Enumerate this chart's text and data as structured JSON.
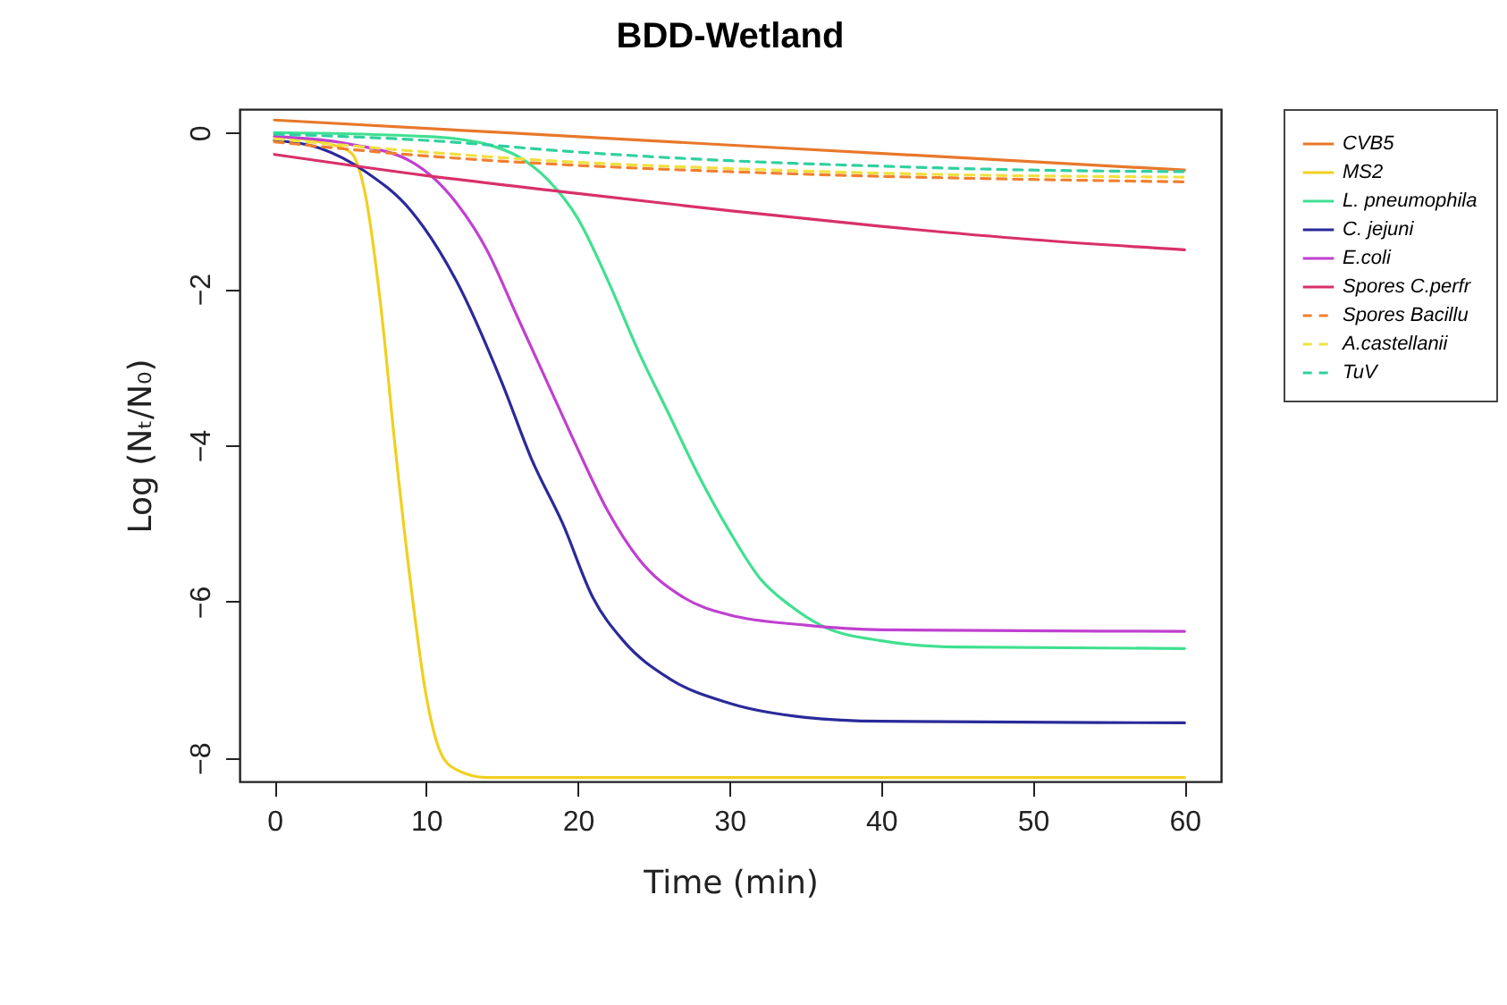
{
  "chart_data": {
    "type": "line",
    "title": "BDD-Wetland",
    "xlabel": "Time (min)",
    "ylabel": "Log (Nₜ/N₀)",
    "xlim": [
      -2.3,
      62.4
    ],
    "ylim": [
      -8.3,
      0.3
    ],
    "xticks": [
      0,
      10,
      20,
      30,
      40,
      50,
      60
    ],
    "yticks": [
      0,
      -2,
      -4,
      -6,
      -8
    ],
    "grid": false,
    "legend": "top right",
    "marker": "none",
    "series": [
      {
        "name": "CVB5",
        "color": "#e8782a",
        "line_style": "solid",
        "x": [
          0,
          30,
          60
        ],
        "values": [
          0.16,
          -0.16,
          -0.48
        ]
      },
      {
        "name": "MS2",
        "color": "#f0d020",
        "line_style": "solid",
        "x": [
          0,
          3,
          5,
          6,
          7,
          8,
          9,
          10,
          11,
          12,
          14,
          60
        ],
        "values": [
          -0.05,
          -0.12,
          -0.25,
          -0.8,
          -2.2,
          -4.1,
          -5.8,
          -7.2,
          -7.95,
          -8.15,
          -8.25,
          -8.25
        ]
      },
      {
        "name": "L. pneumophila",
        "color": "#40e090",
        "line_style": "solid",
        "x": [
          0,
          10,
          12,
          14,
          16,
          18,
          20,
          22,
          24,
          26,
          28,
          30,
          32,
          34,
          36,
          40,
          45,
          60
        ],
        "values": [
          0,
          -0.05,
          -0.08,
          -0.15,
          -0.3,
          -0.6,
          -1.1,
          -1.9,
          -2.8,
          -3.6,
          -4.4,
          -5.1,
          -5.7,
          -6.05,
          -6.3,
          -6.5,
          -6.58,
          -6.6
        ]
      },
      {
        "name": "C. jejuni",
        "color": "#2a2a9a",
        "line_style": "solid",
        "x": [
          0,
          3,
          6,
          9,
          12,
          15,
          17,
          19,
          21,
          23,
          26,
          30,
          35,
          40,
          60
        ],
        "values": [
          -0.1,
          -0.2,
          -0.5,
          -1.0,
          -1.9,
          -3.2,
          -4.2,
          -5.0,
          -5.95,
          -6.5,
          -6.98,
          -7.3,
          -7.48,
          -7.53,
          -7.55
        ]
      },
      {
        "name": "E.coli",
        "color": "#c040d0",
        "line_style": "solid",
        "x": [
          0,
          5,
          9,
          12,
          14,
          16,
          18,
          20,
          22,
          24,
          27,
          30,
          35,
          40,
          60
        ],
        "values": [
          -0.05,
          -0.15,
          -0.37,
          -0.9,
          -1.5,
          -2.35,
          -3.2,
          -4.05,
          -4.85,
          -5.45,
          -5.95,
          -6.17,
          -6.3,
          -6.36,
          -6.38
        ]
      },
      {
        "name": "Spores C.perfr",
        "color": "#d8306a",
        "line_style": "solid",
        "x": [
          0,
          10,
          20,
          30,
          40,
          50,
          60
        ],
        "values": [
          -0.28,
          -0.55,
          -0.78,
          -1.0,
          -1.2,
          -1.37,
          -1.5
        ]
      },
      {
        "name": "Spores Bacillu",
        "color": "#f08030",
        "line_style": "dashed",
        "x": [
          0,
          10,
          20,
          30,
          40,
          50,
          60
        ],
        "values": [
          -0.12,
          -0.3,
          -0.42,
          -0.5,
          -0.56,
          -0.6,
          -0.63
        ]
      },
      {
        "name": "A.castellanii",
        "color": "#f0e040",
        "line_style": "dashed",
        "x": [
          0,
          10,
          20,
          30,
          40,
          60
        ],
        "values": [
          -0.08,
          -0.25,
          -0.38,
          -0.46,
          -0.52,
          -0.57
        ]
      },
      {
        "name": "TuV",
        "color": "#30d0a0",
        "line_style": "dashed",
        "x": [
          0,
          10,
          20,
          30,
          40,
          50,
          60
        ],
        "values": [
          -0.02,
          -0.1,
          -0.25,
          -0.36,
          -0.43,
          -0.48,
          -0.5
        ]
      }
    ]
  }
}
